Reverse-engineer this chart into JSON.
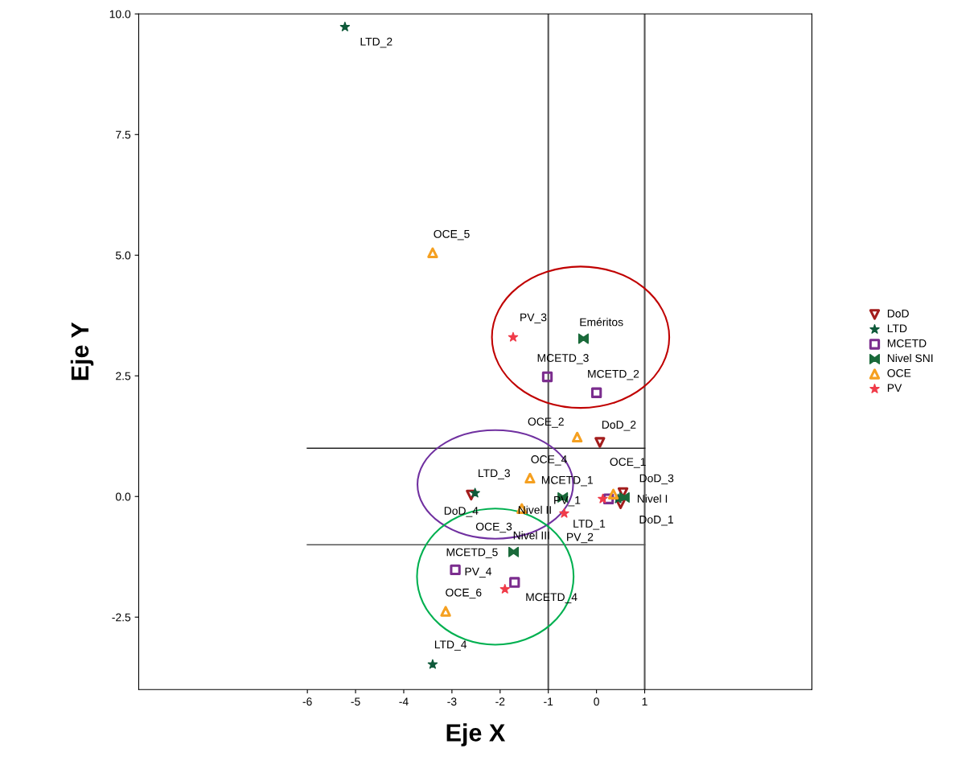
{
  "chart_data": {
    "type": "scatter",
    "xlabel": "Eje X",
    "ylabel": "Eje Y",
    "xlim": [
      -9.5,
      4.47
    ],
    "ylim": [
      -4.0,
      10.0
    ],
    "xticks": [
      -6,
      -5,
      -4,
      -3,
      -2,
      -1,
      0,
      1
    ],
    "yticks": [
      {
        "value": -2.5,
        "label": "-2.5"
      },
      {
        "value": 0,
        "label": "0.0"
      },
      {
        "value": 2.5,
        "label": "2.5"
      },
      {
        "value": 5,
        "label": "5.0"
      },
      {
        "value": 7.5,
        "label": "7.5"
      },
      {
        "value": 10,
        "label": "10.0"
      }
    ],
    "grid": false,
    "legend": "right",
    "series": [
      {
        "name": "DoD",
        "color": "#a31d1d",
        "marker": "triangle",
        "x": [
          0.5,
          0.07,
          0.55,
          -2.6
        ],
        "values": [
          -0.15,
          1.12,
          0.08,
          0.03
        ]
      },
      {
        "name": "LTD",
        "color": "#0f5a3a",
        "marker": "star",
        "x": [
          0.45,
          -5.22,
          -2.52,
          -3.4
        ],
        "values": [
          -0.05,
          9.73,
          0.07,
          -3.48
        ]
      },
      {
        "name": "MCETD",
        "color": "#7b2d8e",
        "marker": "square",
        "x": [
          0.25,
          0.0,
          -1.02,
          -1.7,
          -2.93
        ],
        "values": [
          -0.05,
          2.15,
          2.48,
          -1.78,
          -1.52
        ]
      },
      {
        "name": "Nivel SNI",
        "color": "#1a6a3a",
        "x": [
          -0.27,
          0.58,
          -0.7,
          -1.72
        ],
        "values": [
          3.27,
          -0.02,
          -0.02,
          -1.15
        ]
      },
      {
        "name": "OCE",
        "color": "#f5a020",
        "marker": "triangle",
        "x": [
          0.35,
          -0.4,
          -1.55,
          -1.38,
          -3.4,
          -3.13
        ],
        "values": [
          0.05,
          1.23,
          -0.25,
          0.38,
          5.05,
          -2.38
        ]
      },
      {
        "name": "PV",
        "color": "#f03c4a",
        "marker": "star",
        "x": [
          0.13,
          -0.67,
          -1.73,
          -1.9
        ],
        "values": [
          -0.05,
          -0.35,
          3.3,
          -1.92
        ]
      },
      {
        "type": "line",
        "color": "#222222",
        "x": [
          -6,
          1
        ],
        "values": [
          1,
          1
        ]
      },
      {
        "type": "line",
        "color": "#555555",
        "x": [
          -6,
          1
        ],
        "values": [
          -1,
          -1
        ]
      }
    ],
    "annotations": [
      {
        "text": "DoD_1",
        "x": 0.5,
        "y": -0.15
      },
      {
        "text": "DoD_2",
        "x": 0.07,
        "y": 1.12
      },
      {
        "text": "DoD_3",
        "x": 0.55,
        "y": 0.08
      },
      {
        "text": "DoD_4",
        "x": -2.6,
        "y": 0.03
      },
      {
        "text": "LTD_1",
        "x": 0.45,
        "y": -0.05
      },
      {
        "text": "LTD_2",
        "x": -5.22,
        "y": 9.73
      },
      {
        "text": "LTD_3",
        "x": -2.52,
        "y": 0.07
      },
      {
        "text": "LTD_4",
        "x": -3.4,
        "y": -3.48
      },
      {
        "text": "MCETD_1",
        "x": 0.25,
        "y": -0.05
      },
      {
        "text": "MCETD_2",
        "x": 0.0,
        "y": 2.15
      },
      {
        "text": "MCETD_3",
        "x": -1.02,
        "y": 2.48
      },
      {
        "text": "MCETD_4",
        "x": -1.7,
        "y": -1.78
      },
      {
        "text": "MCETD_5",
        "x": -2.93,
        "y": -1.52
      },
      {
        "text": "Eméritos",
        "x": -0.27,
        "y": 3.27
      },
      {
        "text": "Nivel I",
        "x": 0.58,
        "y": -0.02
      },
      {
        "text": "Nivel II",
        "x": -0.7,
        "y": -0.02
      },
      {
        "text": "Nivel III",
        "x": -1.72,
        "y": -1.15
      },
      {
        "text": "OCE_1",
        "x": 0.35,
        "y": 0.05
      },
      {
        "text": "OCE_2",
        "x": -0.4,
        "y": 1.23
      },
      {
        "text": "OCE_3",
        "x": -1.55,
        "y": -0.25
      },
      {
        "text": "OCE_4",
        "x": -1.38,
        "y": 0.38
      },
      {
        "text": "OCE_5",
        "x": -3.4,
        "y": 5.05
      },
      {
        "text": "OCE_6",
        "x": -3.13,
        "y": -2.38
      },
      {
        "text": "PV_1",
        "x": 0.13,
        "y": -0.05
      },
      {
        "text": "PV_2",
        "x": -0.67,
        "y": -0.35
      },
      {
        "text": "PV_3",
        "x": -1.73,
        "y": 3.3
      },
      {
        "text": "PV_4",
        "x": -1.9,
        "y": -1.92
      }
    ],
    "ref_lines": [
      {
        "axis": "x",
        "value": -1,
        "color": "#555555"
      },
      {
        "axis": "x",
        "value": 1,
        "color": "#555555"
      }
    ]
  }
}
